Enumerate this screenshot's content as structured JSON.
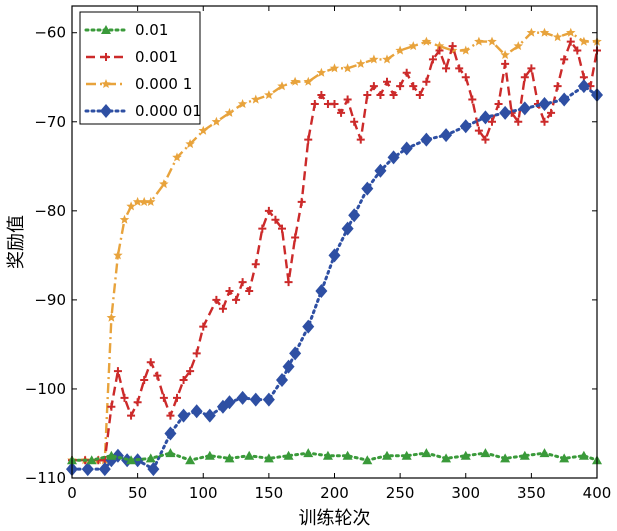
{
  "chart_data": {
    "type": "line",
    "xlabel": "训练轮次",
    "ylabel": "奖励值",
    "xlim": [
      0,
      400
    ],
    "ylim": [
      -110,
      -57
    ],
    "xticks": [
      0,
      50,
      100,
      150,
      200,
      250,
      300,
      350,
      400
    ],
    "yticks": [
      -110,
      -100,
      -90,
      -80,
      -70,
      -60
    ],
    "xtick_labels": [
      "0",
      "50",
      "100",
      "150",
      "200",
      "250",
      "300",
      "350",
      "400"
    ],
    "ytick_labels": [
      "−110",
      "−100",
      "−90",
      "−80",
      "−70",
      "−60"
    ],
    "grid": false,
    "legend_position": "top-left",
    "series": [
      {
        "name": "0.01",
        "color": "#3a9a3a",
        "line": "dotted",
        "marker": "triangle",
        "x": [
          0,
          15,
          30,
          45,
          60,
          75,
          90,
          105,
          120,
          135,
          150,
          165,
          180,
          195,
          210,
          225,
          240,
          255,
          270,
          285,
          300,
          315,
          330,
          345,
          360,
          375,
          390,
          400
        ],
        "y": [
          -108,
          -108,
          -107.5,
          -108,
          -107.8,
          -107.2,
          -108,
          -107.5,
          -107.8,
          -107.5,
          -107.8,
          -107.5,
          -107.2,
          -107.5,
          -107.5,
          -108,
          -107.5,
          -107.5,
          -107.2,
          -107.8,
          -107.5,
          -107.2,
          -107.8,
          -107.5,
          -107.2,
          -107.8,
          -107.5,
          -108
        ]
      },
      {
        "name": "0.001",
        "color": "#cc2a2a",
        "line": "dashed",
        "marker": "plus",
        "x": [
          0,
          10,
          20,
          25,
          30,
          35,
          40,
          45,
          50,
          55,
          60,
          65,
          70,
          75,
          80,
          85,
          90,
          95,
          100,
          110,
          115,
          120,
          125,
          130,
          135,
          140,
          145,
          150,
          155,
          160,
          165,
          170,
          175,
          180,
          185,
          190,
          195,
          200,
          205,
          210,
          215,
          220,
          225,
          230,
          235,
          240,
          245,
          250,
          255,
          260,
          265,
          270,
          275,
          280,
          285,
          290,
          295,
          300,
          305,
          310,
          315,
          320,
          325,
          330,
          335,
          340,
          345,
          350,
          355,
          360,
          365,
          370,
          375,
          380,
          385,
          390,
          395,
          400
        ],
        "y": [
          -108,
          -108,
          -108,
          -108,
          -102,
          -98,
          -101,
          -103,
          -101.5,
          -99,
          -97,
          -98.5,
          -101,
          -103,
          -101,
          -99,
          -98,
          -96,
          -93,
          -90,
          -91,
          -89,
          -90,
          -88,
          -89,
          -86,
          -82,
          -80,
          -81,
          -82,
          -88,
          -83,
          -79,
          -72,
          -68,
          -67,
          -68,
          -68,
          -69,
          -67.5,
          -70,
          -72,
          -67,
          -66,
          -67,
          -65.5,
          -67,
          -66,
          -64.5,
          -66,
          -67,
          -65.5,
          -63,
          -62,
          -64,
          -61.5,
          -64,
          -65,
          -67.5,
          -71,
          -72,
          -70,
          -68,
          -63.5,
          -69,
          -70,
          -65,
          -64,
          -68,
          -70,
          -69,
          -66,
          -63,
          -61,
          -62,
          -65,
          -66,
          -62
        ]
      },
      {
        "name": "0.000 1",
        "color": "#e8a33c",
        "line": "dashdot",
        "marker": "star",
        "x": [
          0,
          10,
          20,
          25,
          30,
          35,
          40,
          45,
          50,
          55,
          60,
          70,
          80,
          90,
          100,
          110,
          120,
          130,
          140,
          150,
          160,
          170,
          180,
          190,
          200,
          210,
          220,
          230,
          240,
          250,
          260,
          270,
          280,
          290,
          300,
          310,
          320,
          330,
          340,
          350,
          360,
          370,
          380,
          390,
          400
        ],
        "y": [
          -108,
          -108,
          -108,
          -108,
          -92,
          -85,
          -81,
          -79.5,
          -79,
          -79,
          -79,
          -77,
          -74,
          -72.5,
          -71,
          -70,
          -69,
          -68,
          -67.5,
          -67,
          -66,
          -65.5,
          -65.5,
          -64.5,
          -64,
          -64,
          -63.5,
          -63,
          -63,
          -62,
          -61.5,
          -61,
          -61.5,
          -62,
          -62,
          -61,
          -61,
          -62.5,
          -61.5,
          -60,
          -60,
          -60.5,
          -60,
          -61,
          -61
        ]
      },
      {
        "name": "0.000 01",
        "color": "#2e4fa3",
        "line": "dotted",
        "marker": "diamond",
        "x": [
          0,
          12,
          25,
          30,
          35,
          42,
          50,
          62,
          75,
          85,
          95,
          105,
          115,
          120,
          130,
          140,
          150,
          160,
          165,
          170,
          180,
          190,
          200,
          210,
          215,
          225,
          235,
          245,
          255,
          270,
          285,
          300,
          315,
          330,
          345,
          360,
          375,
          390,
          400
        ],
        "y": [
          -109,
          -109,
          -109,
          -108,
          -107.5,
          -108,
          -108,
          -109,
          -105,
          -103,
          -102.5,
          -103,
          -102,
          -101.5,
          -101,
          -101.2,
          -101.2,
          -99,
          -97.5,
          -96,
          -93,
          -89,
          -85,
          -82,
          -80.5,
          -77.5,
          -75.5,
          -74,
          -73,
          -72,
          -71.5,
          -70.5,
          -69.5,
          -69,
          -68.5,
          -68,
          -67.5,
          -66,
          -67
        ]
      }
    ]
  }
}
